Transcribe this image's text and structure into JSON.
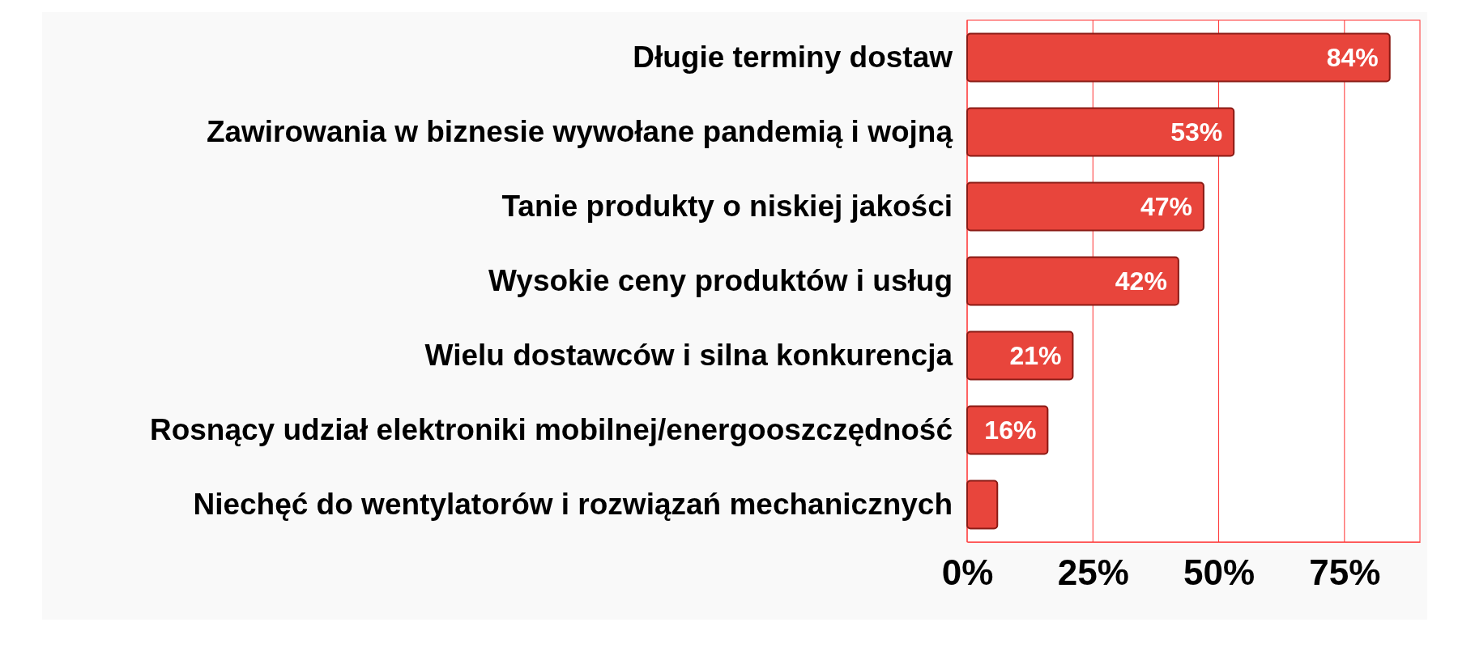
{
  "chart_data": {
    "type": "bar",
    "orientation": "horizontal",
    "categories": [
      "Długie terminy dostaw",
      "Zawirowania w biznesie wywołane pandemią i wojną",
      "Tanie produkty o niskiej jakości",
      "Wysokie ceny produktów i usług",
      "Wielu dostawców i silna konkurencja",
      "Rosnący udział elektroniki mobilnej/energooszczędność",
      "Niechęć do wentylatorów i rozwiązań mechanicznych"
    ],
    "values": [
      84,
      53,
      47,
      42,
      21,
      16,
      6
    ],
    "value_labels": [
      "84%",
      "53%",
      "47%",
      "42%",
      "21%",
      "16%",
      null
    ],
    "color": "#e8453c",
    "xlim": [
      0,
      90
    ],
    "xticks": [
      {
        "value": 0,
        "label": "0%"
      },
      {
        "value": 25,
        "label": "25%"
      },
      {
        "value": 50,
        "label": "50%"
      },
      {
        "value": 75,
        "label": "75%"
      }
    ],
    "grid": "x"
  }
}
